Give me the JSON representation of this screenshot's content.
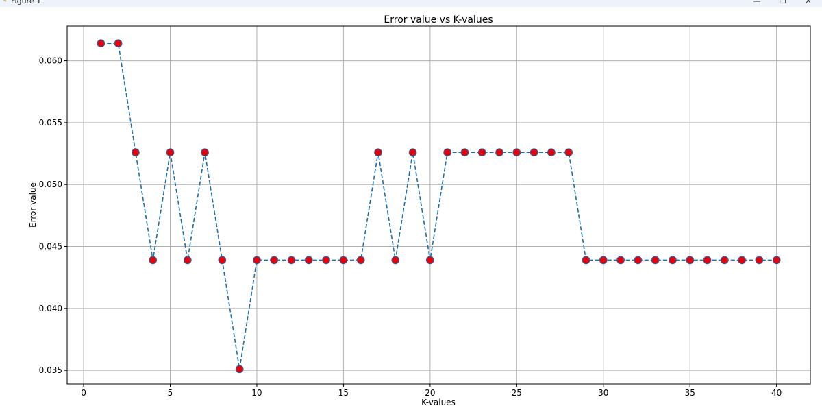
{
  "window": {
    "title": "Figure 1",
    "icon": "matplotlib-icon",
    "controls": {
      "minimize": "—",
      "maximize": "❐",
      "close": "✕"
    }
  },
  "chart_data": {
    "type": "line",
    "title": "Error value vs K-values",
    "xlabel": "K-values",
    "ylabel": "Error value",
    "xlim": [
      -0.95,
      41.95
    ],
    "ylim": [
      0.0339,
      0.0628
    ],
    "xticks": [
      0,
      5,
      10,
      15,
      20,
      25,
      30,
      35,
      40
    ],
    "yticks": [
      0.035,
      0.04,
      0.045,
      0.05,
      0.055,
      0.06
    ],
    "ytick_labels": [
      "0.035",
      "0.040",
      "0.045",
      "0.050",
      "0.055",
      "0.060"
    ],
    "grid": true,
    "line_style": "dashed",
    "line_color": "#1f6fa8",
    "marker_face_color": "#e8000b",
    "marker_edge_color": "#3a5a90",
    "x": [
      1,
      2,
      3,
      4,
      5,
      6,
      7,
      8,
      9,
      10,
      11,
      12,
      13,
      14,
      15,
      16,
      17,
      18,
      19,
      20,
      21,
      22,
      23,
      24,
      25,
      26,
      27,
      28,
      29,
      30,
      31,
      32,
      33,
      34,
      35,
      36,
      37,
      38,
      39,
      40
    ],
    "y": [
      0.0614,
      0.0614,
      0.0526,
      0.0439,
      0.0526,
      0.0439,
      0.0526,
      0.0439,
      0.0351,
      0.0439,
      0.0439,
      0.0439,
      0.0439,
      0.0439,
      0.0439,
      0.0439,
      0.0526,
      0.0439,
      0.0526,
      0.0439,
      0.0526,
      0.0526,
      0.0526,
      0.0526,
      0.0526,
      0.0526,
      0.0526,
      0.0526,
      0.0439,
      0.0439,
      0.0439,
      0.0439,
      0.0439,
      0.0439,
      0.0439,
      0.0439,
      0.0439,
      0.0439,
      0.0439,
      0.0439
    ]
  }
}
